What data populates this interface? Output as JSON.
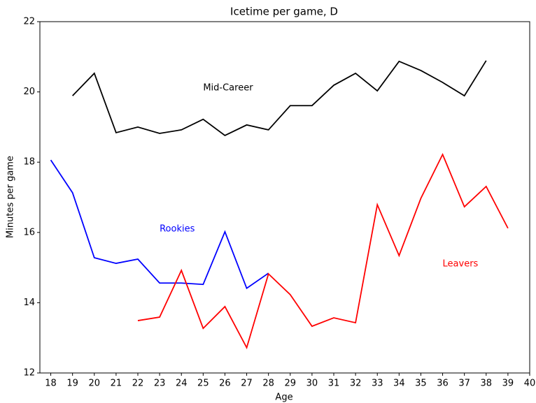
{
  "chart_data": {
    "type": "line",
    "title": "Icetime per game, D",
    "xlabel": "Age",
    "ylabel": "Minutes per game",
    "x": [
      18,
      19,
      20,
      21,
      22,
      23,
      24,
      25,
      26,
      27,
      28,
      29,
      30,
      31,
      32,
      33,
      34,
      35,
      36,
      37,
      38,
      39
    ],
    "series": [
      {
        "name": "Mid-Career",
        "color": "#000000",
        "values": [
          null,
          19.89,
          20.53,
          18.84,
          19.0,
          18.82,
          18.92,
          19.22,
          18.76,
          19.06,
          18.92,
          19.61,
          19.61,
          20.19,
          20.53,
          20.03,
          20.87,
          20.61,
          20.27,
          19.89,
          20.89,
          null
        ]
      },
      {
        "name": "Rookies",
        "color": "#0000ff",
        "values": [
          18.06,
          17.13,
          15.28,
          15.12,
          15.24,
          14.56,
          14.56,
          14.52,
          16.02,
          14.41,
          14.84,
          null,
          null,
          null,
          null,
          null,
          null,
          null,
          null,
          null,
          null,
          null
        ]
      },
      {
        "name": "Leavers",
        "color": "#ff0000",
        "values": [
          null,
          null,
          null,
          null,
          13.49,
          13.59,
          14.92,
          13.27,
          13.89,
          12.72,
          14.82,
          14.23,
          13.33,
          13.57,
          13.43,
          16.79,
          15.34,
          16.97,
          18.22,
          16.73,
          17.31,
          16.12
        ]
      }
    ],
    "annotations": [
      {
        "text": "Mid-Career",
        "x": 25,
        "y": 20.11,
        "color": "#000000"
      },
      {
        "text": "Rookies",
        "x": 23,
        "y": 16.1,
        "color": "#0000ff"
      },
      {
        "text": "Leavers",
        "x": 36,
        "y": 15.1,
        "color": "#ff0000"
      }
    ],
    "xlim": [
      17.5,
      40
    ],
    "ylim": [
      12,
      22
    ],
    "xticks": [
      18,
      19,
      20,
      21,
      22,
      23,
      24,
      25,
      26,
      27,
      28,
      29,
      30,
      31,
      32,
      33,
      34,
      35,
      36,
      37,
      38,
      39,
      40
    ],
    "yticks": [
      12,
      14,
      16,
      18,
      20,
      22
    ]
  }
}
